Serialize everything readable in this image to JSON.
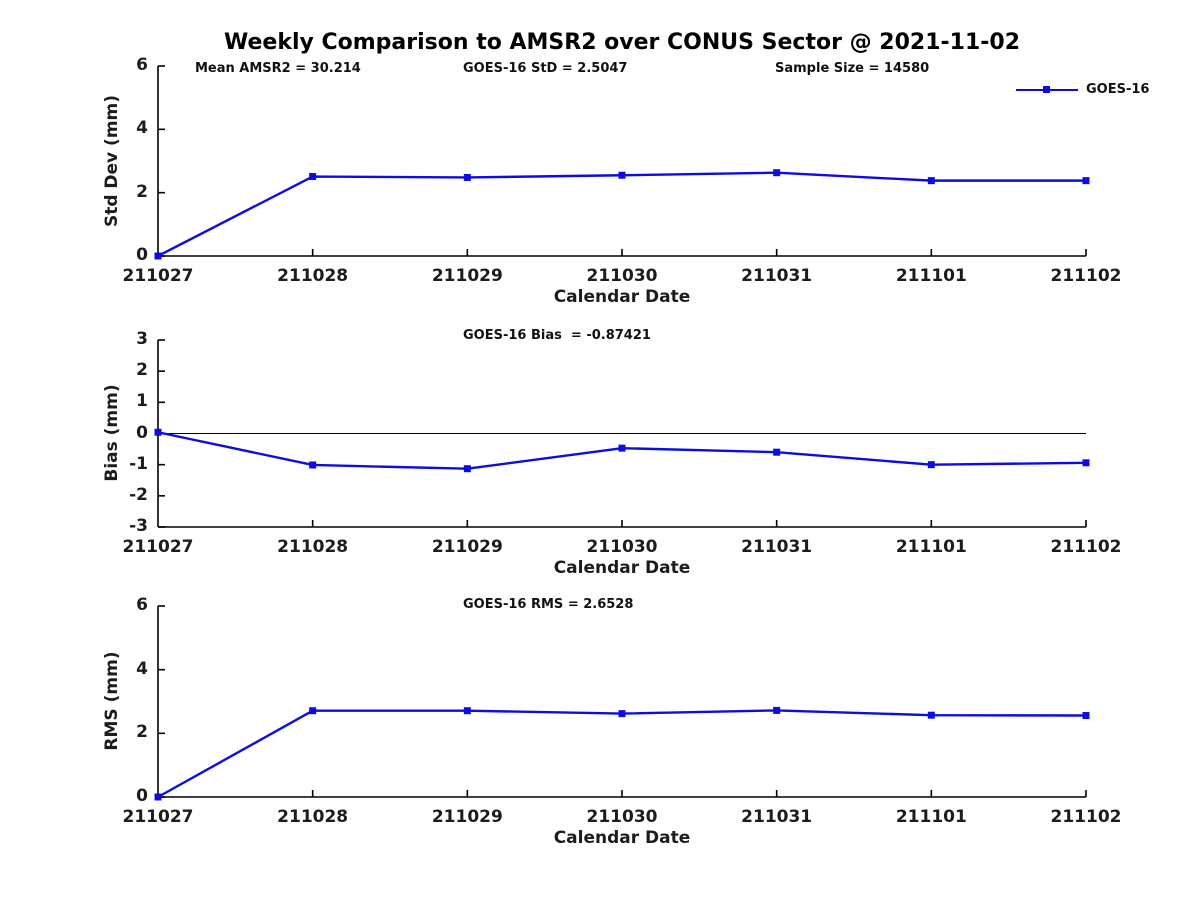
{
  "title": "Weekly Comparison to AMSR2 over CONUS Sector @ 2021-11-02",
  "colors": {
    "series_blue": "#0d0de0",
    "axis_black": "#000000"
  },
  "legend": {
    "label": "GOES-16"
  },
  "annotations": {
    "mean_amsr2": "Mean AMSR2 = 30.214",
    "goes16_std": "GOES-16 StD = 2.5047",
    "sample_size": "Sample Size = 14580",
    "goes16_bias": "GOES-16 Bias  = -0.87421",
    "goes16_rms": "GOES-16 RMS = 2.6528"
  },
  "chart_data": [
    {
      "type": "line",
      "x": [
        "211027",
        "211028",
        "211029",
        "211030",
        "211031",
        "211101",
        "211102"
      ],
      "series": [
        {
          "name": "GOES-16",
          "values": [
            0.0,
            2.51,
            2.48,
            2.55,
            2.63,
            2.38,
            2.38
          ]
        }
      ],
      "xlabel": "Calendar Date",
      "ylabel": "Std Dev (mm)",
      "ylim": [
        0,
        6
      ],
      "yticks": [
        0,
        2,
        4,
        6
      ],
      "zero_line": false,
      "grid": false,
      "legend_position": "top-right",
      "annotation": "Mean AMSR2 = 30.214 | GOES-16 StD = 2.5047 | Sample Size = 14580"
    },
    {
      "type": "line",
      "x": [
        "211027",
        "211028",
        "211029",
        "211030",
        "211031",
        "211101",
        "211102"
      ],
      "series": [
        {
          "name": "GOES-16",
          "values": [
            0.04,
            -1.01,
            -1.13,
            -0.47,
            -0.6,
            -1.0,
            -0.94
          ]
        }
      ],
      "xlabel": "Calendar Date",
      "ylabel": "Bias (mm)",
      "ylim": [
        -3,
        3
      ],
      "yticks": [
        -3,
        -2,
        -1,
        0,
        1,
        2,
        3
      ],
      "zero_line": true,
      "grid": false,
      "annotation": "GOES-16 Bias  = -0.87421"
    },
    {
      "type": "line",
      "x": [
        "211027",
        "211028",
        "211029",
        "211030",
        "211031",
        "211101",
        "211102"
      ],
      "series": [
        {
          "name": "GOES-16",
          "values": [
            0.0,
            2.71,
            2.71,
            2.62,
            2.72,
            2.57,
            2.56
          ]
        }
      ],
      "xlabel": "Calendar Date",
      "ylabel": "RMS (mm)",
      "ylim": [
        0,
        6
      ],
      "yticks": [
        0,
        2,
        4,
        6
      ],
      "zero_line": false,
      "grid": false,
      "annotation": "GOES-16 RMS = 2.6528"
    }
  ]
}
